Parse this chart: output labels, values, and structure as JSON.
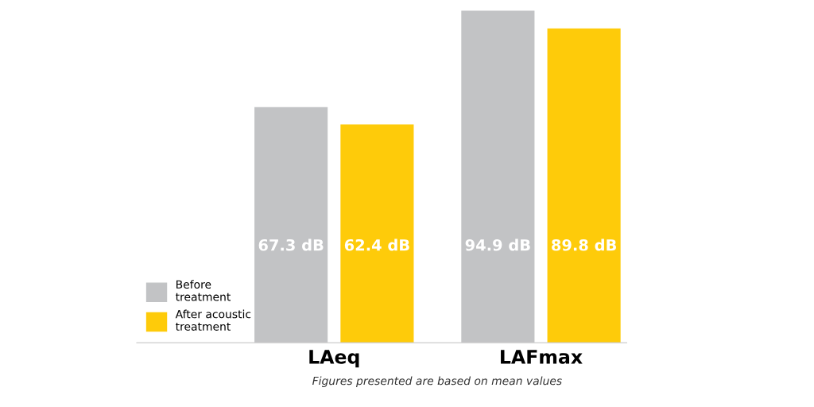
{
  "chart_data": {
    "type": "bar",
    "categories": [
      "LAeq",
      "LAFmax"
    ],
    "series": [
      {
        "name": "Before\ntreatment",
        "color": "#c2c3c5",
        "values": [
          67.3,
          94.9
        ],
        "value_labels": [
          "67.3 dB",
          "94.9 dB"
        ]
      },
      {
        "name": "After acoustic\ntreatment",
        "color": "#fecb0a",
        "values": [
          62.4,
          89.8
        ],
        "value_labels": [
          "62.4 dB",
          "89.8 dB"
        ]
      }
    ],
    "annotations": [
      "Figures presented are based on mean values"
    ],
    "legend": "bottom left",
    "grid": false
  }
}
